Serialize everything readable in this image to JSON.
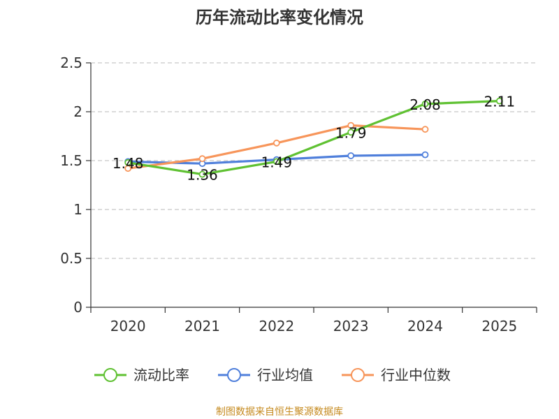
{
  "chart_data": {
    "type": "line",
    "title": "历年流动比率变化情况",
    "categories": [
      "2020",
      "2021",
      "2022",
      "2023",
      "2024",
      "2025"
    ],
    "y_ticks": [
      "0",
      "0.5",
      "1",
      "1.5",
      "2",
      "2.5"
    ],
    "ylim": [
      0,
      2.5
    ],
    "xlabel": "",
    "ylabel": "",
    "grid": true,
    "legend_position": "bottom",
    "series": [
      {
        "name": "流动比率",
        "color": "#5fc132",
        "values": [
          1.48,
          1.36,
          1.49,
          1.79,
          2.08,
          2.11
        ],
        "data_labels": [
          "1.48",
          "1.36",
          "1.49",
          "1.79",
          "2.08",
          "2.11"
        ]
      },
      {
        "name": "行业均值",
        "color": "#4f7fdb",
        "values": [
          1.49,
          1.47,
          1.51,
          1.55,
          1.56,
          null
        ],
        "data_labels": []
      },
      {
        "name": "行业中位数",
        "color": "#f7955a",
        "values": [
          1.42,
          1.52,
          1.68,
          1.86,
          1.82,
          null
        ],
        "data_labels": []
      }
    ],
    "source_note": "制图数据来自恒生聚源数据库"
  }
}
